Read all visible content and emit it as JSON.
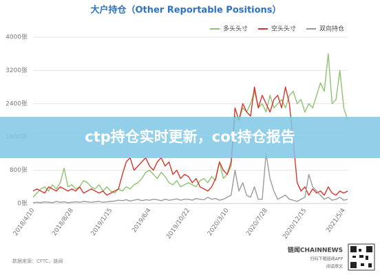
{
  "chart_data": {
    "type": "line",
    "title": "大户持仓（Other Reportable Positions）",
    "categories": [
      "2018/4/10",
      null,
      null,
      null,
      null,
      null,
      null,
      null,
      null,
      null,
      "2018/8/28",
      null,
      null,
      null,
      null,
      null,
      null,
      null,
      null,
      null,
      "2019/1/15",
      null,
      null,
      null,
      null,
      null,
      null,
      null,
      null,
      null,
      "2019/6/4",
      null,
      null,
      null,
      null,
      null,
      null,
      null,
      null,
      null,
      "2019/10/22",
      null,
      null,
      null,
      null,
      null,
      null,
      null,
      null,
      null,
      "2020/3/10",
      null,
      null,
      null,
      null,
      null,
      null,
      null,
      null,
      null,
      "2020/7/28",
      null,
      null,
      null,
      null,
      null,
      null,
      null,
      null,
      null,
      "2020/12/15",
      null,
      null,
      null,
      null,
      null,
      null,
      null,
      null,
      null,
      "2021/5/4",
      null
    ],
    "series": [
      {
        "name": "多头头寸",
        "color": "#8dc26f",
        "values": [
          150,
          250,
          350,
          400,
          300,
          450,
          350,
          500,
          850,
          400,
          450,
          350,
          400,
          550,
          500,
          400,
          350,
          450,
          300,
          400,
          300,
          250,
          350,
          300,
          400,
          350,
          450,
          500,
          600,
          750,
          800,
          700,
          600,
          750,
          650,
          500,
          450,
          550,
          400,
          450,
          500,
          450,
          400,
          550,
          600,
          500,
          650,
          550,
          1000,
          600,
          700,
          900,
          2100,
          2000,
          2300,
          2200,
          2400,
          2700,
          2300,
          2400,
          2200,
          2600,
          2300,
          2400,
          2500,
          2300,
          2600,
          2700,
          2400,
          2500,
          2200,
          2400,
          2300,
          2600,
          2900,
          2700,
          3600,
          2400,
          2500,
          3200,
          2300,
          2000
        ]
      },
      {
        "name": "空头头寸",
        "color": "#d9342b",
        "values": [
          300,
          350,
          300,
          250,
          400,
          350,
          300,
          400,
          350,
          300,
          350,
          300,
          400,
          250,
          300,
          350,
          300,
          250,
          300,
          200,
          250,
          300,
          350,
          700,
          1000,
          1100,
          800,
          900,
          1000,
          1100,
          900,
          800,
          1000,
          1100,
          900,
          1000,
          700,
          800,
          600,
          700,
          650,
          500,
          600,
          400,
          350,
          300,
          400,
          600,
          1000,
          800,
          700,
          1000,
          2300,
          2000,
          2400,
          2200,
          2100,
          2800,
          2300,
          2600,
          2400,
          2200,
          2500,
          2600,
          2300,
          2800,
          2400,
          1500,
          500,
          300,
          400,
          200,
          350,
          250,
          300,
          200,
          400,
          250,
          200,
          300,
          250,
          300
        ]
      },
      {
        "name": "双向持仓",
        "color": "#9a9a9a",
        "values": [
          20,
          30,
          20,
          40,
          30,
          20,
          50,
          30,
          40,
          20,
          30,
          40,
          30,
          50,
          40,
          30,
          40,
          50,
          30,
          40,
          50,
          60,
          80,
          70,
          90,
          60,
          80,
          100,
          70,
          90,
          80,
          100,
          90,
          70,
          100,
          80,
          90,
          110,
          80,
          100,
          100,
          80,
          120,
          100,
          90,
          150,
          100,
          120,
          80,
          100,
          150,
          200,
          800,
          300,
          500,
          200,
          150,
          400,
          100,
          100,
          1200,
          600,
          300,
          100,
          150,
          200,
          100,
          80,
          50,
          100,
          150,
          700,
          400,
          300,
          200,
          100,
          150,
          80,
          100,
          150,
          80,
          100
        ]
      }
    ],
    "ylim": [
      0,
      4000
    ],
    "yticks": [
      {
        "value": 0,
        "label": "0张"
      },
      {
        "value": 800,
        "label": "800张"
      },
      {
        "value": 1600,
        "label": "1600张"
      },
      {
        "value": 2400,
        "label": "2400张"
      },
      {
        "value": 3200,
        "label": "3200张"
      },
      {
        "value": 4000,
        "label": "4000张"
      }
    ],
    "grid": true,
    "legend": "top-right"
  },
  "banner": {
    "text": "ctp持仓实时更新，cot持仓报告"
  },
  "footer": {
    "source": "数据来源：CFTC，链闻",
    "brand": "链闻CHAINNEWS",
    "scan": "扫码下载链闻APP",
    "read": "阅读原文"
  }
}
